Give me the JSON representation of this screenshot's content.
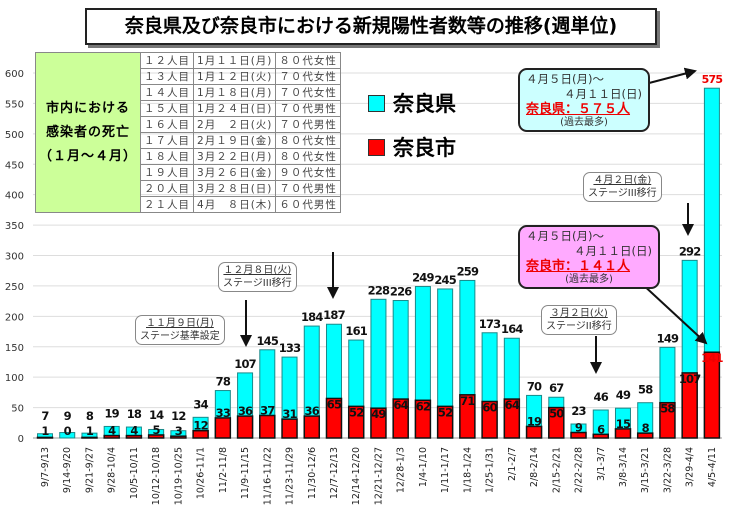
{
  "title": "奈良県及び奈良市における新規陽性者数等の推移(週単位)",
  "deaths_table": {
    "heading": [
      "市内における",
      "感染者の死亡",
      "（１月～４月）"
    ],
    "rows": [
      [
        "１２人目",
        "1月１１日(月)",
        "８０代女性"
      ],
      [
        "１３人目",
        "1月１２日(火)",
        "７０代女性"
      ],
      [
        "１４人目",
        "1月１８日(月)",
        "７０代女性"
      ],
      [
        "１５人目",
        "1月２４日(日)",
        "７０代男性"
      ],
      [
        "１６人目",
        "2月　２日(火)",
        "７０代男性"
      ],
      [
        "１７人目",
        "2月１９日(金)",
        "８０代女性"
      ],
      [
        "１８人目",
        "3月２２日(月)",
        "８０代女性"
      ],
      [
        "１９人目",
        "3月２６日(金)",
        "９０代女性"
      ],
      [
        "２０人目",
        "3月２８日(日)",
        "７０代男性"
      ],
      [
        "２１人目",
        "4月　８日(木)",
        "６０代男性"
      ]
    ]
  },
  "callouts": {
    "pref": {
      "line1": "４月５日(月)～",
      "line2": "４月１１日(日)",
      "highlight": "奈良県：５７５人",
      "note": "(過去最多)"
    },
    "city": {
      "line1": "４月５日(月)～",
      "line2": "４月１１日(日)",
      "highlight": "奈良市：１４１人",
      "note": "(過去最多)"
    },
    "stages": [
      {
        "date": "１１月９日(月)",
        "text": "ステージ基準設定"
      },
      {
        "date": "１２月８日(火)",
        "text": "ステージIII移行"
      },
      {
        "date": "３月２日(火)",
        "text": "ステージII移行"
      },
      {
        "date": "４月２日(金)",
        "text": "ステージIII移行"
      }
    ]
  },
  "chart_data": {
    "type": "bar",
    "categories": [
      "9/7-9/13",
      "9/14-9/20",
      "9/21-9/27",
      "9/28-10/4",
      "10/5-10/11",
      "10/12-10/18",
      "10/19-10/25",
      "10/26-11/1",
      "11/2-11/8",
      "11/9-11/15",
      "11/16-11/22",
      "11/23-11/29",
      "11/30-12/6",
      "12/7-12/13",
      "12/14-12/20",
      "12/21-12/27",
      "12/28-1/3",
      "1/4-1/10",
      "1/11-1/17",
      "1/18-1/24",
      "1/25-1/31",
      "2/1-2/7",
      "2/8-2/14",
      "2/15-2/21",
      "2/22-2/28",
      "3/1-3/7",
      "3/8-3/14",
      "3/15-3/21",
      "3/22-3/28",
      "3/29-4/4",
      "4/5-4/11"
    ],
    "series": [
      {
        "name": "奈良県",
        "color": "#00ffff",
        "values": [
          7,
          9,
          8,
          19,
          18,
          14,
          12,
          34,
          78,
          107,
          145,
          133,
          184,
          187,
          161,
          228,
          226,
          249,
          245,
          259,
          173,
          164,
          70,
          67,
          23,
          46,
          49,
          58,
          149,
          292,
          575
        ]
      },
      {
        "name": "奈良市",
        "color": "#ff0000",
        "values": [
          1,
          0,
          1,
          4,
          4,
          5,
          3,
          12,
          33,
          36,
          37,
          31,
          36,
          65,
          52,
          49,
          64,
          62,
          52,
          71,
          60,
          64,
          19,
          50,
          9,
          6,
          15,
          8,
          58,
          107,
          141
        ]
      }
    ],
    "ylim": [
      0,
      600
    ],
    "yticks": [
      0,
      50,
      100,
      150,
      200,
      250,
      300,
      350,
      400,
      450,
      500,
      550,
      600
    ],
    "grid": true,
    "legend": "top-center",
    "bar_layout": "overlapping"
  }
}
